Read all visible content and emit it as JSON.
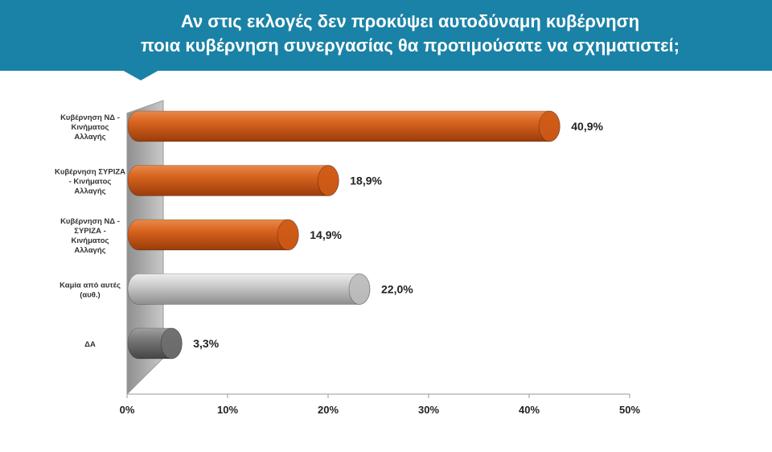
{
  "title": {
    "line1": "Αν στις εκλογές δεν προκύψει αυτοδύναμη κυβέρνηση",
    "line2": "ποια κυβέρνηση συνεργασίας θα προτιμούσατε να σχηματιστεί;"
  },
  "colors": {
    "banner": "#1a82a6",
    "orange": "#cf5a17",
    "light_gray": "#bdbdbd",
    "dark_gray": "#6e6e6e"
  },
  "chart_data": {
    "type": "bar",
    "orientation": "horizontal",
    "categories": [
      [
        "Κυβέρνηση ΝΔ -",
        "Κινήματος",
        "Αλλαγής"
      ],
      [
        "Κυβέρνηση ΣΥΡΙΖΑ",
        "- Κινήματος",
        "Αλλαγής"
      ],
      [
        "Κυβέρνηση ΝΔ -",
        "ΣΥΡΙΖΑ -",
        "Κινήματος",
        "Αλλαγής"
      ],
      [
        "Καμία από αυτές",
        "(αυθ.)"
      ],
      [
        "ΔΑ"
      ]
    ],
    "values": [
      40.9,
      18.9,
      14.9,
      22.0,
      3.3
    ],
    "value_labels": [
      "40,9%",
      "18,9%",
      "14,9%",
      "22,0%",
      "3,3%"
    ],
    "bar_colors": [
      "orange",
      "orange",
      "orange",
      "light_gray",
      "dark_gray"
    ],
    "xlim": [
      0,
      50
    ],
    "xticks": [
      0,
      10,
      20,
      30,
      40,
      50
    ],
    "xtick_labels": [
      "0%",
      "10%",
      "20%",
      "30%",
      "40%",
      "50%"
    ],
    "grid": false,
    "legend": "none"
  }
}
